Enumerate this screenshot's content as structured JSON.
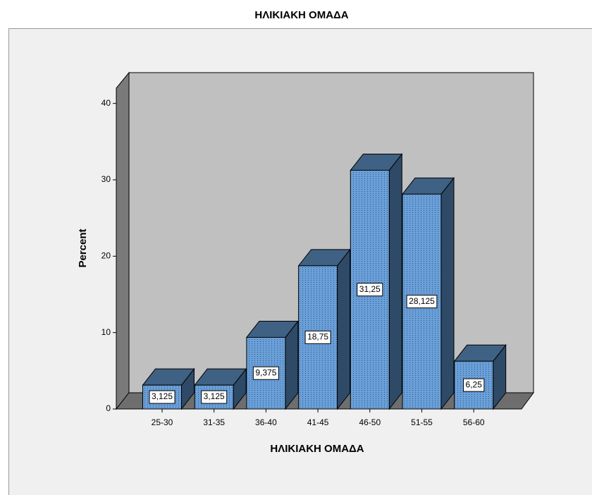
{
  "chart_data": {
    "type": "bar3d",
    "title": "ΗΛΙΚΙΑΚΗ ΟΜΑΔΑ",
    "xlabel": "ΗΛΙΚΙΑΚΗ ΟΜΑΔΑ",
    "ylabel": "Percent",
    "categories": [
      "25-30",
      "31-35",
      "36-40",
      "41-45",
      "46-50",
      "51-55",
      "56-60"
    ],
    "values": [
      3.125,
      3.125,
      9.375,
      18.75,
      31.25,
      28.125,
      6.25
    ],
    "value_labels": [
      "3,125",
      "3,125",
      "9,375",
      "18,75",
      "31,25",
      "28,125",
      "6,25"
    ],
    "color": "#6a9fd8",
    "ylim": [
      0,
      42
    ],
    "yticks": [
      0,
      10,
      20,
      30,
      40
    ]
  }
}
